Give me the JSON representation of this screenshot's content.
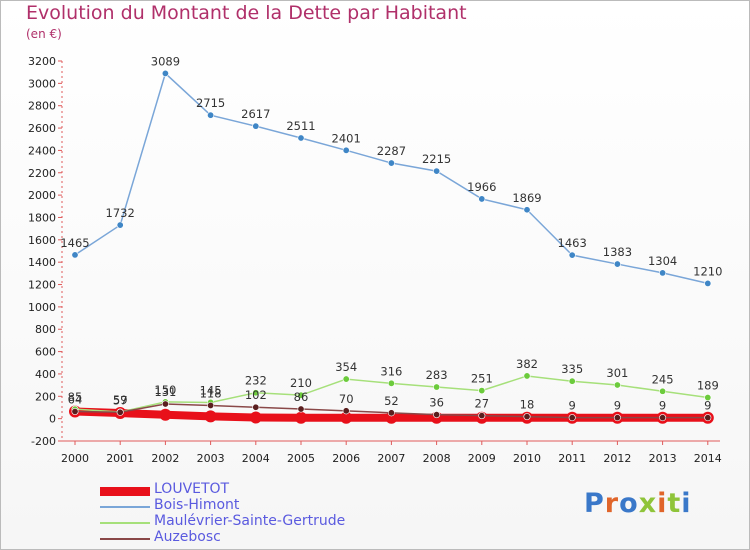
{
  "title": "Evolution du Montant de la Dette par Habitant",
  "subtitle": "(en €)",
  "logo_text": "Proxiti",
  "logo_colors": [
    "#3a78c9",
    "#e0652a",
    "#3a78c9",
    "#8fc43a",
    "#e0652a",
    "#8fc43a",
    "#3a78c9"
  ],
  "chart_data": {
    "type": "line",
    "x": [
      2000,
      2001,
      2002,
      2003,
      2004,
      2005,
      2006,
      2007,
      2008,
      2009,
      2010,
      2011,
      2012,
      2013,
      2014
    ],
    "ylim": [
      -200,
      3200
    ],
    "yticks": [
      -200,
      0,
      200,
      400,
      600,
      800,
      1000,
      1200,
      1400,
      1600,
      1800,
      2000,
      2200,
      2400,
      2600,
      2800,
      3000,
      3200
    ],
    "grid": false,
    "legend_position": "bottom-left",
    "series": [
      {
        "name": "LOUVETOT",
        "color": "#e8101a",
        "values": [
          64,
          50,
          35,
          20,
          10,
          8,
          8,
          8,
          8,
          8,
          8,
          8,
          8,
          8,
          8
        ],
        "labels": [],
        "style": "thick"
      },
      {
        "name": "Bois-Himont",
        "color": "#7aa6d8",
        "marker": "#3f86c6",
        "values": [
          1465,
          1732,
          3089,
          2715,
          2617,
          2511,
          2401,
          2287,
          2215,
          1966,
          1869,
          1463,
          1383,
          1304,
          1210
        ],
        "labels": [
          "1465",
          "1732",
          "3089",
          "2715",
          "2617",
          "2511",
          "2401",
          "2287",
          "2215",
          "1966",
          "1869",
          "1463",
          "1383",
          "1304",
          "1210"
        ]
      },
      {
        "name": "Maulévrier-Sainte-Gertrude",
        "color": "#a6e07a",
        "marker": "#6ccb3c",
        "values": [
          85,
          59,
          150,
          145,
          232,
          210,
          354,
          316,
          283,
          251,
          382,
          335,
          301,
          245,
          189
        ],
        "labels": [
          "85",
          "59",
          "150",
          "145",
          "232",
          "210",
          "354",
          "316",
          "283",
          "251",
          "382",
          "335",
          "301",
          "245",
          "189"
        ]
      },
      {
        "name": "Auzebosc",
        "color": "#8a4848",
        "marker": "#5a1e1e",
        "values": [
          64,
          57,
          131,
          118,
          102,
          86,
          70,
          52,
          36,
          27,
          18,
          9,
          9,
          9,
          9
        ],
        "labels": [
          "64",
          "57",
          "131",
          "118",
          "102",
          "86",
          "70",
          "52",
          "36",
          "27",
          "18",
          "9",
          "9",
          "9",
          "9"
        ]
      }
    ]
  }
}
